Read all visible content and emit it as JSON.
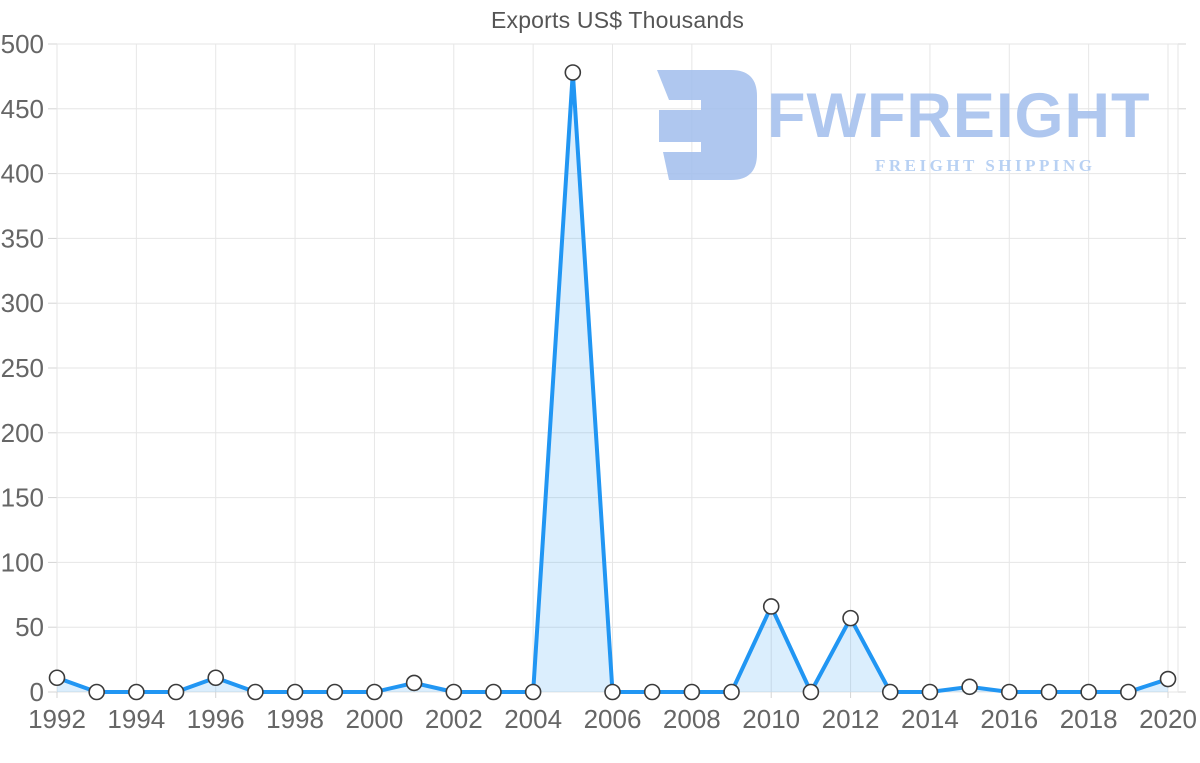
{
  "chart_data": {
    "type": "area",
    "title": "Exports US$ Thousands",
    "x": [
      1992,
      1993,
      1994,
      1995,
      1996,
      1997,
      1998,
      1999,
      2000,
      2001,
      2002,
      2003,
      2004,
      2005,
      2006,
      2007,
      2008,
      2009,
      2010,
      2011,
      2012,
      2013,
      2014,
      2015,
      2016,
      2017,
      2018,
      2019,
      2020
    ],
    "series": [
      {
        "name": "Exports US$ Thousands",
        "values": [
          11,
          0,
          0,
          0,
          11,
          0,
          0,
          0,
          0,
          7,
          0,
          0,
          0,
          478,
          0,
          0,
          0,
          0,
          66,
          0,
          57,
          0,
          0,
          4,
          0,
          0,
          0,
          0,
          10
        ]
      }
    ],
    "xlabel": "",
    "ylabel": "",
    "ylim": [
      0,
      500
    ],
    "y_ticks": [
      0,
      50,
      100,
      150,
      200,
      250,
      300,
      350,
      400,
      450,
      500
    ],
    "x_ticks": [
      1992,
      1994,
      1996,
      1998,
      2000,
      2002,
      2004,
      2006,
      2008,
      2010,
      2012,
      2014,
      2016,
      2018,
      2020
    ],
    "grid": true,
    "legend": "none",
    "colors": {
      "line": "#2196f3",
      "area_fill_blended": "#dbeefd",
      "marker_fill": "#ffffff",
      "marker_stroke": "#3b3b3b",
      "grid": "#e6e6e6",
      "tick": "#d4d4d4",
      "axis_text": "#666666",
      "title_text": "#555555"
    }
  },
  "watermark": {
    "brand": "FWFREIGHT",
    "tagline": "FREIGHT SHIPPING",
    "color": "#a4c0ed",
    "tagline_color": "#afcbf2"
  }
}
